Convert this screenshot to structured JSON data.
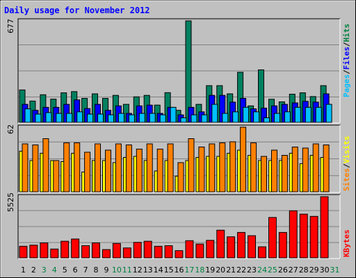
{
  "chart_data": [
    {
      "type": "bar",
      "title": "Daily usage for November 2012",
      "panel": "hits",
      "ymax_label": "677",
      "ymax": 677,
      "legend": [
        {
          "label": "Pages",
          "color": "#00c0ff"
        },
        {
          "label": "Files",
          "color": "#0000ff"
        },
        {
          "label": "Hits",
          "color": "#008040"
        }
      ],
      "categories": [
        "1",
        "2",
        "3",
        "4",
        "5",
        "6",
        "7",
        "8",
        "9",
        "10",
        "11",
        "12",
        "13",
        "14",
        "15",
        "16",
        "17",
        "18",
        "19",
        "20",
        "21",
        "22",
        "23",
        "24",
        "25",
        "26",
        "27",
        "28",
        "29",
        "30",
        "31"
      ],
      "weekend_days": [
        "3",
        "4",
        "10",
        "11",
        "17",
        "18",
        "24",
        "25",
        "31"
      ],
      "series": [
        {
          "name": "Hits",
          "color": "#008060",
          "values": [
            216,
            142,
            184,
            155,
            197,
            205,
            160,
            190,
            160,
            180,
            120,
            170,
            180,
            115,
            198,
            80,
            677,
            120,
            245,
            245,
            190,
            334,
            110,
            350,
            154,
            137,
            188,
            197,
            172,
            245,
            0
          ]
        },
        {
          "name": "Files",
          "color": "#0000ff",
          "values": [
            120,
            80,
            100,
            100,
            120,
            150,
            92,
            120,
            80,
            110,
            60,
            110,
            115,
            60,
            100,
            50,
            100,
            70,
            180,
            180,
            135,
            160,
            90,
            95,
            110,
            120,
            130,
            140,
            135,
            190,
            0
          ]
        },
        {
          "name": "Pages",
          "color": "#00c0ff",
          "values": [
            90,
            55,
            65,
            60,
            60,
            70,
            55,
            55,
            50,
            60,
            50,
            60,
            60,
            50,
            100,
            30,
            50,
            50,
            120,
            60,
            70,
            100,
            70,
            30,
            60,
            70,
            100,
            100,
            100,
            120,
            0
          ]
        }
      ]
    },
    {
      "type": "bar",
      "panel": "visits",
      "ymax_label": "62",
      "ymax": 62,
      "legend": [
        {
          "label": "Sites",
          "color": "#ff8000"
        },
        {
          "label": "Visits",
          "color": "#ffff00"
        }
      ],
      "categories": [
        "1",
        "2",
        "3",
        "4",
        "5",
        "6",
        "7",
        "8",
        "9",
        "10",
        "11",
        "12",
        "13",
        "14",
        "15",
        "16",
        "17",
        "18",
        "19",
        "20",
        "21",
        "22",
        "23",
        "24",
        "25",
        "26",
        "27",
        "28",
        "29",
        "30",
        "31"
      ],
      "series": [
        {
          "name": "Visits",
          "color": "#ffff00",
          "values": [
            39,
            30,
            37,
            30,
            29,
            37,
            19,
            30,
            30,
            28,
            33,
            34,
            30,
            20,
            30,
            15,
            30,
            33,
            34,
            34,
            37,
            40,
            35,
            30,
            30,
            30,
            37,
            27,
            35,
            33,
            0
          ]
        },
        {
          "name": "Sites",
          "color": "#ff8000",
          "values": [
            46,
            45,
            51,
            30,
            47,
            47,
            38,
            46,
            40,
            46,
            45,
            41,
            46,
            41,
            46,
            28,
            51,
            43,
            46,
            47,
            48,
            62,
            47,
            34,
            40,
            35,
            43,
            42,
            46,
            45,
            0
          ]
        }
      ]
    },
    {
      "type": "bar",
      "panel": "kbytes",
      "ymax_label": "5525",
      "ymax": 5525,
      "legend": [
        {
          "label": "KBytes",
          "color": "#ff0000"
        }
      ],
      "categories": [
        "1",
        "2",
        "3",
        "4",
        "5",
        "6",
        "7",
        "8",
        "9",
        "10",
        "11",
        "12",
        "13",
        "14",
        "15",
        "16",
        "17",
        "18",
        "19",
        "20",
        "21",
        "22",
        "23",
        "24",
        "25",
        "26",
        "27",
        "28",
        "29",
        "30",
        "31"
      ],
      "series": [
        {
          "name": "KBytes",
          "color": "#ff0000",
          "values": [
            1050,
            1150,
            1350,
            800,
            1500,
            1700,
            1100,
            1350,
            750,
            1300,
            900,
            1400,
            1500,
            1050,
            1100,
            650,
            1550,
            1250,
            1580,
            2500,
            1900,
            2300,
            2000,
            1000,
            3650,
            2300,
            4250,
            3950,
            3750,
            5525,
            0
          ]
        }
      ]
    }
  ]
}
